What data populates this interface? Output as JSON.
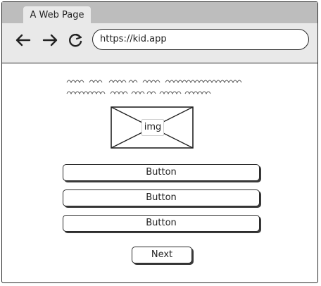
{
  "browser": {
    "tab_title": "A Web Page",
    "url": "https://kid.app",
    "icons": [
      "back-arrow-icon",
      "forward-arrow-icon",
      "reload-icon"
    ]
  },
  "content": {
    "image_label": "img",
    "buttons": [
      "Button",
      "Button",
      "Button"
    ],
    "next_label": "Next"
  }
}
